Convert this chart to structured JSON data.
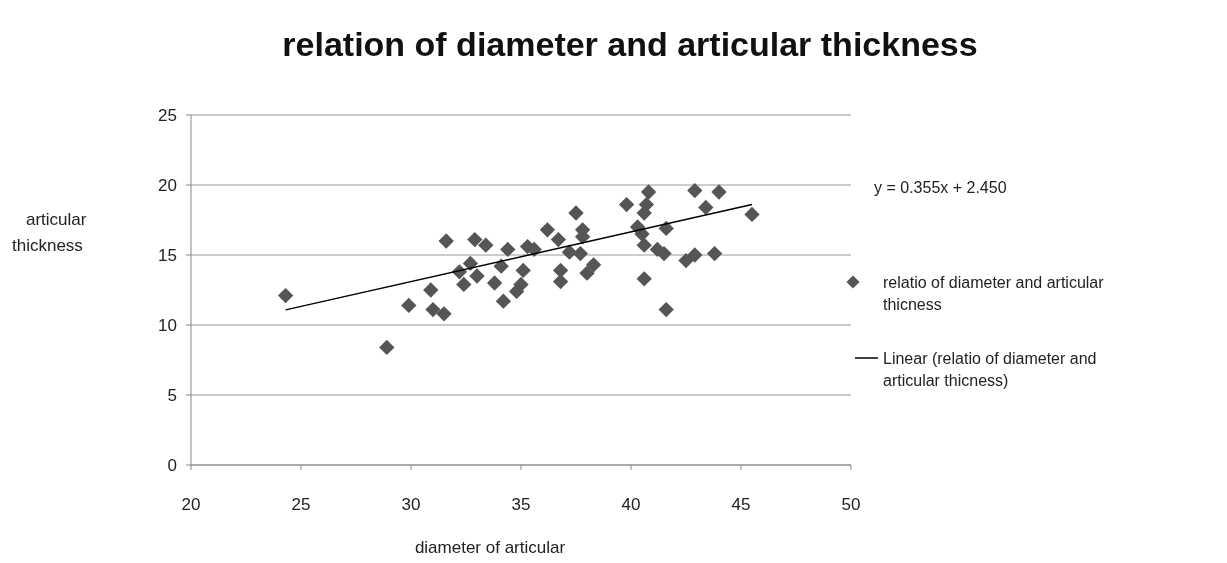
{
  "chart_data": {
    "type": "scatter",
    "title": "relation of diameter and articular thickness",
    "xlabel": "diameter of articular",
    "ylabel": "articular thickness",
    "xlim": [
      20,
      50
    ],
    "xticks": [
      20,
      25,
      30,
      35,
      40,
      45,
      50
    ],
    "ylim": [
      0,
      25
    ],
    "yticks": [
      0,
      5,
      10,
      15,
      20,
      25
    ],
    "grid": "y",
    "legend": "right",
    "marker": "diamond",
    "annotations": [
      "y = 0.355x + 2.450"
    ],
    "series": [
      {
        "name": "relatio of diameter and articular thicness",
        "color": "#555555",
        "x": [
          24.3,
          28.9,
          29.9,
          30.9,
          31.0,
          31.5,
          31.6,
          32.9,
          33.4,
          32.2,
          32.7,
          32.4,
          33.0,
          33.8,
          34.1,
          34.4,
          34.2,
          34.8,
          35.0,
          35.1,
          35.3,
          35.6,
          36.2,
          36.7,
          36.8,
          36.8,
          37.5,
          37.2,
          37.8,
          37.8,
          37.7,
          38.0,
          38.3,
          39.8,
          40.8,
          40.7,
          40.6,
          40.3,
          40.5,
          40.6,
          40.6,
          41.2,
          41.5,
          41.6,
          41.6,
          42.5,
          42.9,
          42.9,
          43.4,
          44.0,
          43.8,
          45.5
        ],
        "values": [
          12.1,
          8.4,
          11.4,
          12.5,
          11.1,
          10.8,
          16.0,
          16.1,
          15.7,
          13.8,
          14.4,
          12.9,
          13.5,
          13.0,
          14.2,
          15.4,
          11.7,
          12.4,
          12.9,
          13.9,
          15.6,
          15.4,
          16.8,
          16.1,
          13.9,
          13.1,
          18.0,
          15.2,
          16.8,
          16.3,
          15.1,
          13.7,
          14.3,
          18.6,
          19.5,
          18.6,
          18.0,
          17.0,
          16.5,
          15.7,
          13.3,
          15.4,
          15.1,
          16.9,
          11.1,
          14.6,
          15.0,
          19.6,
          18.4,
          19.5,
          15.1,
          17.9
        ]
      },
      {
        "name": "Linear (relatio of diameter and articular thicness)",
        "type": "line",
        "color": "#000000",
        "line_style": "solid",
        "marker": "none",
        "x": [
          24.3,
          45.5
        ],
        "values": [
          11.08,
          18.6
        ]
      }
    ]
  }
}
